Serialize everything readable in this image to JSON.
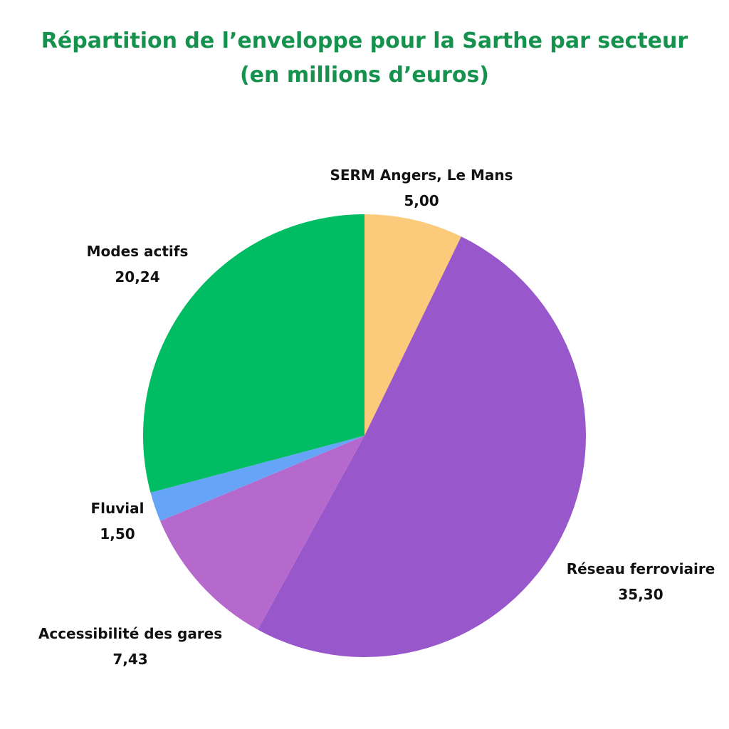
{
  "chart_data": {
    "type": "pie",
    "title_lines": [
      "Répartition de l’enveloppe pour la Sarthe par secteur",
      "(en millions d’euros)"
    ],
    "slices": [
      {
        "label": "SERM Angers, Le Mans",
        "value": 5.0,
        "display": "5,00",
        "color": "#fcca7b"
      },
      {
        "label": "Réseau ferroviaire",
        "value": 35.3,
        "display": "35,30",
        "color": "#9858cb"
      },
      {
        "label": "Accessibilité des gares",
        "value": 7.43,
        "display": "7,43",
        "color": "#b669cd"
      },
      {
        "label": "Fluvial",
        "value": 1.5,
        "display": "1,50",
        "color": "#66a4f7"
      },
      {
        "label": "Modes actifs",
        "value": 20.24,
        "display": "20,24",
        "color": "#00bd63"
      }
    ]
  }
}
